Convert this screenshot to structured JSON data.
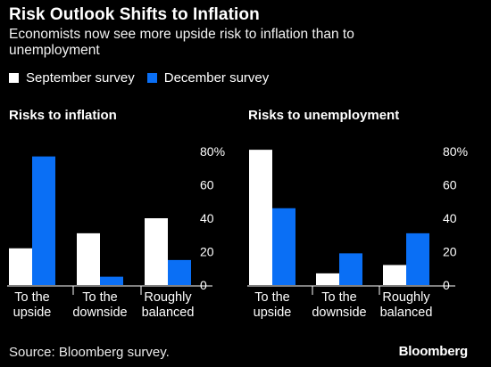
{
  "header": {
    "title": "Risk Outlook Shifts to Inflation",
    "subtitle": "Economists now see more upside risk to inflation than to unemployment"
  },
  "legend": [
    {
      "label": "September survey",
      "color": "#ffffff"
    },
    {
      "label": "December survey",
      "color": "#0a6ff5"
    }
  ],
  "footer": {
    "source": "Source: Bloomberg survey.",
    "brand": "Bloomberg"
  },
  "chart_data": [
    {
      "type": "bar",
      "title": "Risks to inflation",
      "categories": [
        "To the upside",
        "To the downside",
        "Roughly balanced"
      ],
      "series": [
        {
          "name": "September survey",
          "values": [
            22,
            31,
            40
          ]
        },
        {
          "name": "December survey",
          "values": [
            77,
            5,
            15
          ]
        }
      ],
      "ylim": [
        0,
        80
      ],
      "yticks": [
        0,
        20,
        40,
        60,
        80
      ],
      "ytick_labels": [
        "0",
        "20",
        "40",
        "60",
        "80%"
      ],
      "axis_side": "right",
      "grid": false
    },
    {
      "type": "bar",
      "title": "Risks to unemployment",
      "categories": [
        "To the upside",
        "To the downside",
        "Roughly balanced"
      ],
      "series": [
        {
          "name": "September survey",
          "values": [
            81,
            7,
            12
          ]
        },
        {
          "name": "December survey",
          "values": [
            46,
            19,
            31
          ]
        }
      ],
      "ylim": [
        0,
        80
      ],
      "yticks": [
        0,
        20,
        40,
        60,
        80
      ],
      "ytick_labels": [
        "0",
        "20",
        "40",
        "60",
        "80%"
      ],
      "axis_side": "right",
      "grid": false
    }
  ]
}
